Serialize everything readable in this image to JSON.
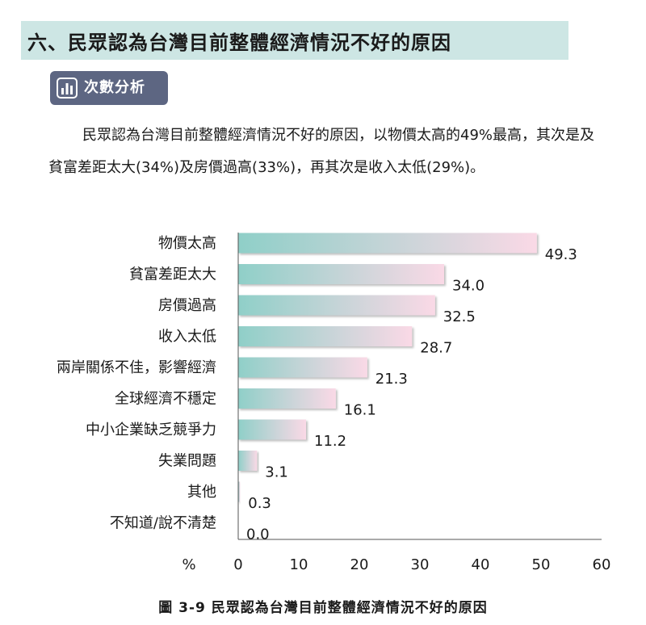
{
  "header": {
    "section_title": "六、民眾認為台灣目前整體經濟情況不好的原因",
    "badge_label": "次數分析",
    "badge_icon": "bar-chart-icon"
  },
  "paragraph": "民眾認為台灣目前整體經濟情況不好的原因，以物價太高的49%最高，其次是及貧富差距太大(34%)及房價過高(33%)，再其次是收入太低(29%)。",
  "caption": "圖 3-9  民眾認為台灣目前整體經濟情況不好的原因",
  "colors": {
    "header_bg": "#cde6e4",
    "badge_bg": "#5d6682",
    "bar_start": "#8fcfc8",
    "bar_end": "#fad9e6"
  },
  "chart_data": {
    "type": "bar",
    "orientation": "horizontal",
    "categories": [
      "物價太高",
      "貧富差距太大",
      "房價過高",
      "收入太低",
      "兩岸關係不佳，影響經濟",
      "全球經濟不穩定",
      "中小企業缺乏競爭力",
      "失業問題",
      "其他",
      "不知道/說不清楚"
    ],
    "values": [
      49.3,
      34.0,
      32.5,
      28.7,
      21.3,
      16.1,
      11.2,
      3.1,
      0.3,
      0.0
    ],
    "value_labels": [
      "49.3",
      "34.0",
      "32.5",
      "28.7",
      "21.3",
      "16.1",
      "11.2",
      "3.1",
      "0.3",
      "0.0"
    ],
    "xunit_label": "%",
    "xlim": [
      0,
      60
    ],
    "xticks": [
      "0",
      "10",
      "20",
      "30",
      "40",
      "50",
      "60"
    ],
    "grid": false,
    "legend": "none"
  }
}
